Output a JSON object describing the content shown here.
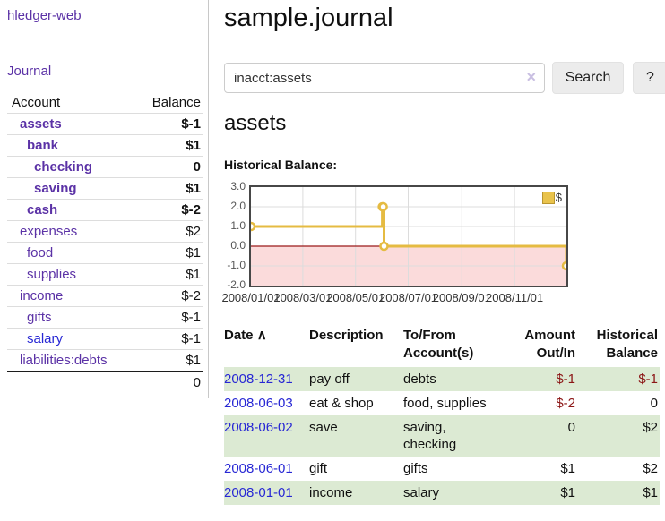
{
  "app": {
    "brand": "hledger-web",
    "nav_journal": "Journal"
  },
  "sidebar": {
    "table_headers": {
      "account": "Account",
      "balance": "Balance"
    },
    "accounts": [
      {
        "name": "assets",
        "depth": 1,
        "balance": "$-1",
        "current": true,
        "balance_tone": "neg-strong"
      },
      {
        "name": "bank",
        "depth": 2,
        "balance": "$1",
        "current": true,
        "balance_tone": "pos"
      },
      {
        "name": "checking",
        "depth": 3,
        "balance": "0",
        "current": true,
        "balance_tone": "pos"
      },
      {
        "name": "saving",
        "depth": 3,
        "balance": "$1",
        "current": true,
        "balance_tone": "pos"
      },
      {
        "name": "cash",
        "depth": 2,
        "balance": "$-2",
        "current": true,
        "balance_tone": "neg-strong"
      },
      {
        "name": "expenses",
        "depth": 1,
        "balance": "$2",
        "current": false,
        "balance_tone": "pos"
      },
      {
        "name": "food",
        "depth": 2,
        "balance": "$1",
        "current": false,
        "balance_tone": "pos"
      },
      {
        "name": "supplies",
        "depth": 2,
        "balance": "$1",
        "current": false,
        "balance_tone": "pos"
      },
      {
        "name": "income",
        "depth": 1,
        "balance": "$-2",
        "current": false,
        "balance_tone": "neg-soft"
      },
      {
        "name": "gifts",
        "depth": 2,
        "balance": "$-1",
        "current": false,
        "balance_tone": "neg-soft"
      },
      {
        "name": "salary",
        "depth": 2,
        "balance": "$-1",
        "current": false,
        "balance_tone": "neg-soft",
        "link_tone": "blue"
      },
      {
        "name": "liabilities:debts",
        "depth": 1,
        "balance": "$1",
        "current": false,
        "balance_tone": "pos"
      }
    ],
    "total": "0"
  },
  "header": {
    "title": "sample.journal"
  },
  "search": {
    "value": "inacct:assets",
    "clear_icon": "×",
    "button": "Search",
    "help_button": "?"
  },
  "account_page": {
    "heading": "assets",
    "chart_label": "Historical Balance:"
  },
  "chart_data": {
    "type": "line",
    "step": true,
    "title": "Historical Balance:",
    "series": [
      {
        "name": "$",
        "color": "#e5bb42",
        "points": [
          [
            "2008-01-01",
            1
          ],
          [
            "2008-06-01",
            2
          ],
          [
            "2008-06-02",
            2
          ],
          [
            "2008-06-03",
            0
          ],
          [
            "2008-12-31",
            -1
          ]
        ]
      }
    ],
    "x_range": [
      "2008-01-01",
      "2008-12-31"
    ],
    "x_ticks": [
      "2008/01/01",
      "2008/03/01",
      "2008/05/01",
      "2008/07/01",
      "2008/09/01",
      "2008/11/01"
    ],
    "y_ticks": [
      3.0,
      2.0,
      1.0,
      0.0,
      -1.0,
      -2.0
    ],
    "ylim": [
      -2,
      3
    ],
    "grid": true,
    "legend": {
      "label": "$",
      "position": "top-right",
      "swatch_color": "#e9c34c",
      "swatch_border": "#b9952f"
    },
    "negative_region_fill": "#fbdbdb",
    "zero_line_color": "#9b1b1b"
  },
  "register": {
    "headers": {
      "date": "Date",
      "sort_icon": "∧",
      "description": "Description",
      "accounts": "To/From Account(s)",
      "amount": "Amount Out/In",
      "balance": "Historical Balance"
    },
    "rows": [
      {
        "date": "2008-12-31",
        "description": "pay off",
        "accounts": "debts",
        "amount": "$-1",
        "balance": "$-1"
      },
      {
        "date": "2008-06-03",
        "description": "eat & shop",
        "accounts": "food, supplies",
        "amount": "$-2",
        "balance": "0"
      },
      {
        "date": "2008-06-02",
        "description": "save",
        "accounts": "saving, checking",
        "amount": "0",
        "balance": "$2"
      },
      {
        "date": "2008-06-01",
        "description": "gift",
        "accounts": "gifts",
        "amount": "$1",
        "balance": "$2"
      },
      {
        "date": "2008-01-01",
        "description": "income",
        "accounts": "salary",
        "amount": "$1",
        "balance": "$1"
      }
    ]
  },
  "colors": {
    "link_purple": "#5b32a6",
    "link_blue": "#2727d4",
    "negative_strong": "#8c1616",
    "negative_soft": "#bf8585",
    "row_green": "#dcead3",
    "chart_gold": "#e5bb42",
    "chart_negative_region": "#fbdbdb",
    "chart_zero_line": "#9b1b1b"
  }
}
